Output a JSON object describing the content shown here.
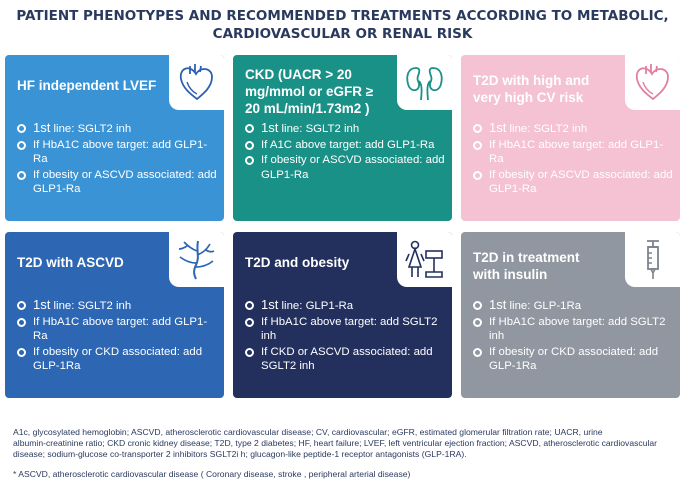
{
  "title": {
    "line1": "PATIENT PHENOTYPES AND RECOMMENDED TREATMENTS ACCORDING TO METABOLIC,",
    "line2": "CARDIOVASCULAR OR RENAL RISK"
  },
  "colors": {
    "hf": "#3a93d5",
    "ckd": "#1a9187",
    "cv_risk": "#f4c2d2",
    "ascvd": "#2d66b3",
    "obesity": "#23305e",
    "insulin": "#9197a0"
  },
  "cards": [
    {
      "title_lines": [
        "HF independent LVEF"
      ],
      "icon": "heart-icon",
      "items": [
        {
          "prefix": "1st",
          "text": " line: SGLT2 inh"
        },
        {
          "prefix": "",
          "text": "If  HbA1C above target: add GLP1-Ra"
        },
        {
          "prefix": "",
          "text": "If obesity or ASCVD associated: add GLP1-Ra"
        }
      ]
    },
    {
      "title_lines": [
        "CKD  (UACR > 20",
        "mg/mmol or eGFR ≥",
        "20 mL/min/1.73m2 )"
      ],
      "icon": "kidneys-icon",
      "items": [
        {
          "prefix": "1st",
          "text": " line: SGLT2 inh"
        },
        {
          "prefix": "",
          "text": "If  A1C above target: add GLP1-Ra"
        },
        {
          "prefix": "",
          "text": "If obesity or ASCVD associated: add GLP1-Ra"
        }
      ]
    },
    {
      "title_lines": [
        "T2D with high and",
        "very high CV risk"
      ],
      "icon": "heart-icon",
      "items": [
        {
          "prefix": "1st",
          "text": " line: SGLT2 inh"
        },
        {
          "prefix": "",
          "text": "If HbA1C above target: add GLP1-Ra"
        },
        {
          "prefix": "",
          "text": "If obesity or ASCVD associated: add GLP1-Ra"
        }
      ]
    },
    {
      "title_lines": [
        "T2D with ASCVD"
      ],
      "icon": "blood-vessels-icon",
      "items": [
        {
          "prefix": "1st",
          "text": " line: SGLT2 inh"
        },
        {
          "prefix": "",
          "text": "If  HbA1C above target: add GLP1-Ra"
        },
        {
          "prefix": "",
          "text": "If obesity or CKD associated: add GLP-1Ra"
        }
      ]
    },
    {
      "title_lines": [
        "T2D and obesity"
      ],
      "icon": "person-scale-icon",
      "items": [
        {
          "prefix": "1st",
          "text": " line: GLP1-Ra"
        },
        {
          "prefix": "",
          "text": "If HbA1C above target: add SGLT2 inh"
        },
        {
          "prefix": "",
          "text": "If CKD or ASCVD associated: add SGLT2 inh"
        }
      ]
    },
    {
      "title_lines": [
        "T2D in treatment",
        "with insulin"
      ],
      "icon": "syringe-icon",
      "items": [
        {
          "prefix": "1st",
          "text": " line: GLP-1Ra"
        },
        {
          "prefix": "",
          "text": "If HbA1C above target: add SGLT2 inh"
        },
        {
          "prefix": "",
          "text": "If obesity or CKD associated: add GLP-1Ra"
        }
      ]
    }
  ],
  "footnotes": {
    "abbreviations_lines": [
      "A1c, glycosylated hemoglobin; ASCVD, atherosclerotic cardiovascular disease; CV, cardiovascular; eGFR, estimated glomerular filtration rate; UACR, urine",
      "albumin-creatinine ratio; CKD cronic kidney disease; T2D, type 2 diabetes; HF, heart failure; LVEF, left ventricular ejection fraction;  ASCVD, atherosclerotic cardiovascular",
      "disease; sodium-glucose co-transporter 2 inhibitors  SGLT2i h; glucagon-like peptide-1 receptor antagonists (GLP-1RA)."
    ],
    "ascvd_note": "* ASCVD, atherosclerotic cardiovascular disease ( Coronary disease, stroke , peripheral arterial disease)"
  }
}
